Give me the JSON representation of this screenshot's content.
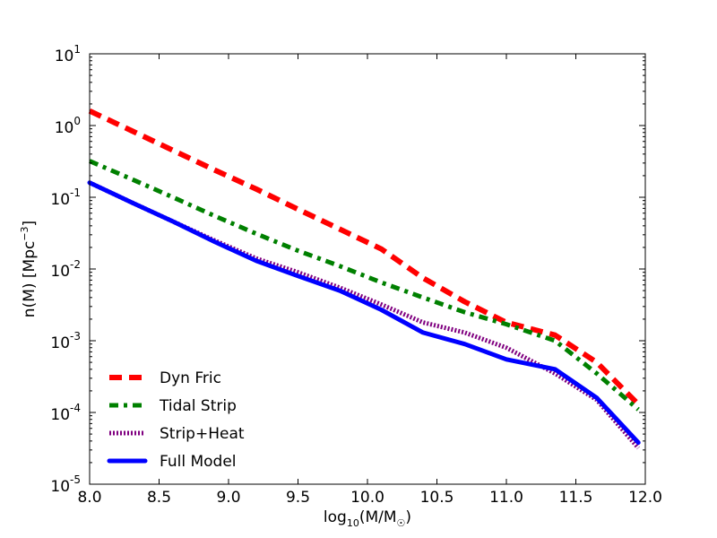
{
  "chart_data": {
    "type": "line",
    "title": "",
    "xlabel": {
      "base": "log",
      "sub": "10",
      "mid": "(M/M",
      "sub2": "☉",
      "end": ")"
    },
    "ylabel": {
      "base": "n(M) [Mpc",
      "sup": "−3",
      "end": "]"
    },
    "xlim": [
      8.0,
      12.0
    ],
    "ylim_log10": [
      -5,
      1
    ],
    "y_scale": "log",
    "x_ticks": [
      "8.0",
      "8.5",
      "9.0",
      "9.5",
      "10.0",
      "10.5",
      "11.0",
      "11.5",
      "12.0"
    ],
    "y_ticks": [
      {
        "base": "10",
        "exp": "1"
      },
      {
        "base": "10",
        "exp": "0"
      },
      {
        "base": "10",
        "exp": "-1"
      },
      {
        "base": "10",
        "exp": "-2"
      },
      {
        "base": "10",
        "exp": "-3"
      },
      {
        "base": "10",
        "exp": "-4"
      },
      {
        "base": "10",
        "exp": "-5"
      }
    ],
    "legend_position": "lower-left",
    "series": [
      {
        "name": "Dyn Fric",
        "color": "#ff0000",
        "style": "dashed",
        "x": [
          8.0,
          8.3,
          8.6,
          8.9,
          9.2,
          9.5,
          9.8,
          10.1,
          10.4,
          10.7,
          11.0,
          11.35,
          11.65,
          11.95
        ],
        "y": [
          1.6,
          0.85,
          0.45,
          0.24,
          0.13,
          0.068,
          0.036,
          0.019,
          0.0075,
          0.0035,
          0.0018,
          0.0012,
          0.0005,
          0.00013
        ]
      },
      {
        "name": "Tidal Strip",
        "color": "#008000",
        "style": "dashdot",
        "x": [
          8.0,
          8.3,
          8.6,
          8.9,
          9.2,
          9.5,
          9.8,
          10.1,
          10.4,
          10.7,
          11.0,
          11.35,
          11.65,
          11.95
        ],
        "y": [
          0.32,
          0.18,
          0.1,
          0.055,
          0.031,
          0.018,
          0.011,
          0.0065,
          0.004,
          0.0025,
          0.0017,
          0.001,
          0.00035,
          0.00011
        ]
      },
      {
        "name": "Strip+Heat",
        "color": "#800080",
        "style": "dotted",
        "x": [
          8.0,
          8.3,
          8.6,
          8.9,
          9.2,
          9.5,
          9.8,
          10.1,
          10.4,
          10.7,
          11.0,
          11.35,
          11.65,
          11.95
        ],
        "y": [
          0.16,
          0.085,
          0.046,
          0.025,
          0.014,
          0.009,
          0.0055,
          0.0032,
          0.0018,
          0.0013,
          0.0008,
          0.00035,
          0.00015,
          3.2e-05
        ]
      },
      {
        "name": "Full Model",
        "color": "#0000ff",
        "style": "solid",
        "x": [
          8.0,
          8.3,
          8.6,
          8.9,
          9.2,
          9.5,
          9.8,
          10.1,
          10.4,
          10.7,
          11.0,
          11.35,
          11.65,
          11.95
        ],
        "y": [
          0.16,
          0.085,
          0.046,
          0.024,
          0.013,
          0.008,
          0.005,
          0.0027,
          0.0013,
          0.0009,
          0.00055,
          0.0004,
          0.00016,
          3.8e-05
        ]
      }
    ]
  }
}
